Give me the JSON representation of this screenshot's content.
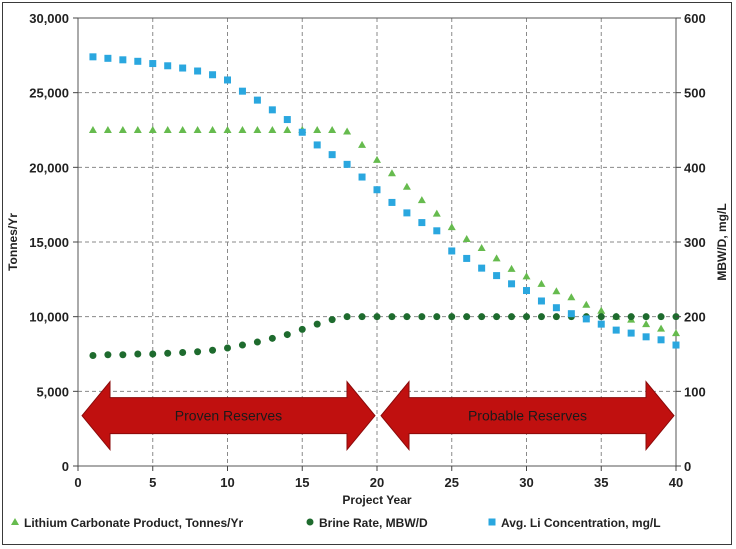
{
  "chart_data": {
    "type": "scatter",
    "xlabel": "Project Year",
    "ylabel": "Tonnes/Yr",
    "y2label": "MBW/D, mg/L",
    "xlim": [
      0,
      40
    ],
    "ylim": [
      0,
      30000
    ],
    "y2lim": [
      0,
      600
    ],
    "x_ticks": [
      "0",
      "5",
      "10",
      "15",
      "20",
      "25",
      "30",
      "35",
      "40"
    ],
    "y_ticks": [
      "0",
      "5,000",
      "10,000",
      "15,000",
      "20,000",
      "25,000",
      "30,000"
    ],
    "y2_ticks": [
      "0",
      "100",
      "200",
      "300",
      "400",
      "500",
      "600"
    ],
    "grid": true,
    "legend_position": "bottom",
    "series": [
      {
        "name": "Lithium Carbonate Product, Tonnes/Yr",
        "axis": "left",
        "marker": "triangle",
        "color": "#66BB4E",
        "x": [
          1,
          2,
          3,
          4,
          5,
          6,
          7,
          8,
          9,
          10,
          11,
          12,
          13,
          14,
          15,
          16,
          17,
          18,
          19,
          20,
          21,
          22,
          23,
          24,
          25,
          26,
          27,
          28,
          29,
          30,
          31,
          32,
          33,
          34,
          35,
          36,
          37,
          38,
          39,
          40
        ],
        "values": [
          22500,
          22500,
          22500,
          22500,
          22500,
          22500,
          22500,
          22500,
          22500,
          22500,
          22500,
          22500,
          22500,
          22500,
          22500,
          22500,
          22500,
          22400,
          21500,
          20500,
          19600,
          18700,
          17800,
          16900,
          16000,
          15200,
          14600,
          13900,
          13200,
          12700,
          12200,
          11700,
          11300,
          10800,
          10400,
          10000,
          9800,
          9500,
          9200,
          8900
        ]
      },
      {
        "name": "Brine Rate, MBW/D",
        "axis": "right",
        "marker": "circle",
        "color": "#1E6B2E",
        "x": [
          1,
          2,
          3,
          4,
          5,
          6,
          7,
          8,
          9,
          10,
          11,
          12,
          13,
          14,
          15,
          16,
          17,
          18,
          19,
          20,
          21,
          22,
          23,
          24,
          25,
          26,
          27,
          28,
          29,
          30,
          31,
          32,
          33,
          34,
          35,
          36,
          37,
          38,
          39,
          40
        ],
        "values": [
          148,
          149,
          149,
          150,
          150,
          151,
          152,
          153,
          155,
          158,
          162,
          166,
          171,
          176,
          183,
          190,
          196,
          200,
          200,
          200,
          200,
          200,
          200,
          200,
          200,
          200,
          200,
          200,
          200,
          200,
          200,
          200,
          200,
          200,
          200,
          200,
          200,
          200,
          200,
          200
        ]
      },
      {
        "name": "Avg. Li Concentration, mg/L",
        "axis": "right",
        "marker": "square",
        "color": "#2AA7DF",
        "x": [
          1,
          2,
          3,
          4,
          5,
          6,
          7,
          8,
          9,
          10,
          11,
          12,
          13,
          14,
          15,
          16,
          17,
          18,
          19,
          20,
          21,
          22,
          23,
          24,
          25,
          26,
          27,
          28,
          29,
          30,
          31,
          32,
          33,
          34,
          35,
          36,
          37,
          38,
          39,
          40
        ],
        "values": [
          548,
          546,
          544,
          542,
          539,
          536,
          533,
          529,
          524,
          517,
          502,
          490,
          477,
          464,
          447,
          430,
          417,
          404,
          387,
          370,
          353,
          339,
          326,
          315,
          288,
          278,
          265,
          255,
          244,
          235,
          221,
          212,
          204,
          197,
          190,
          182,
          178,
          173,
          169,
          162
        ]
      }
    ],
    "annotations": [
      {
        "label": "Proven Reserves",
        "x_range": [
          0,
          20
        ],
        "y2_value": 50,
        "color": "#C0100F"
      },
      {
        "label": "Probable Reserves",
        "x_range": [
          20,
          40
        ],
        "y2_value": 50,
        "color": "#C0100F"
      }
    ]
  }
}
